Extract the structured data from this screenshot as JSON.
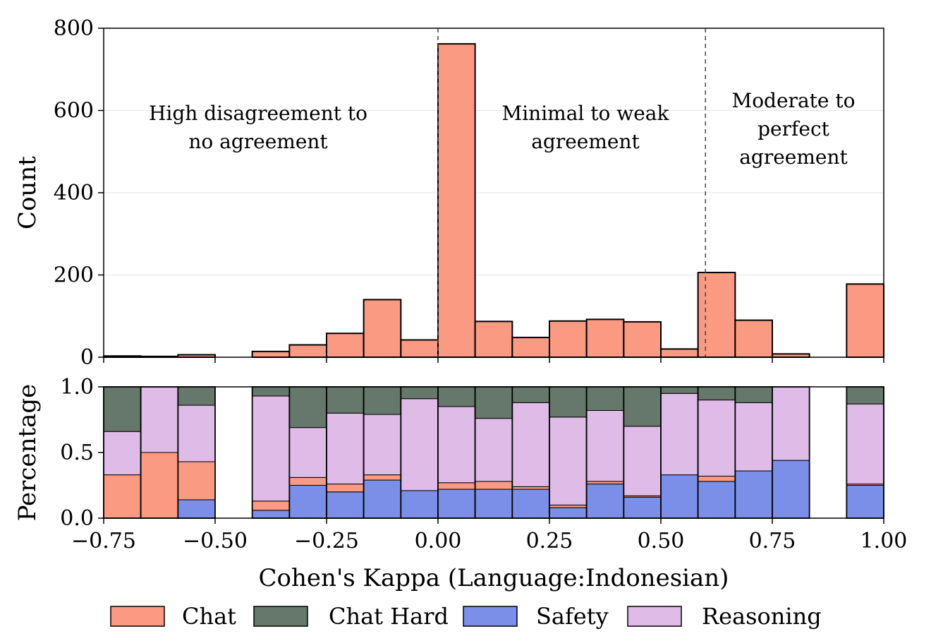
{
  "chart_data": [
    {
      "type": "bar",
      "panel": "count histogram",
      "ylabel": "Count",
      "ylim": [
        0,
        800
      ],
      "yticks": [
        "0",
        "200",
        "400",
        "600",
        "800"
      ],
      "grid": true,
      "bin_edges": [
        -0.75,
        -0.6667,
        -0.5833,
        -0.5,
        -0.4167,
        -0.3333,
        -0.25,
        -0.1667,
        -0.0833,
        0.0,
        0.0833,
        0.1667,
        0.25,
        0.3333,
        0.4167,
        0.5,
        0.5833,
        0.6667,
        0.75,
        0.8333,
        0.9167,
        1.0
      ],
      "values": [
        3,
        2,
        6,
        0,
        14,
        30,
        58,
        140,
        42,
        762,
        87,
        48,
        88,
        92,
        86,
        20,
        206,
        90,
        8,
        0,
        178
      ],
      "thresholds": [
        0.0,
        0.6
      ],
      "region_labels": [
        {
          "lines": [
            "High disagreement to",
            "no agreement"
          ]
        },
        {
          "lines": [
            "Minimal to weak",
            "agreement"
          ]
        },
        {
          "lines": [
            "Moderate to",
            "perfect",
            "agreement"
          ]
        }
      ]
    },
    {
      "type": "bar",
      "stacked": true,
      "panel": "percentage breakdown",
      "ylabel": "Percentage",
      "ylim": [
        0,
        1
      ],
      "yticks": [
        "0.0",
        "0.5",
        "1.0"
      ],
      "xlabel": "Cohen's Kappa (Language:Indonesian)",
      "xlim": [
        -0.75,
        1.0
      ],
      "xticks": [
        "−0.75",
        "−0.50",
        "−0.25",
        "0.00",
        "0.25",
        "0.50",
        "0.75",
        "1.00"
      ],
      "series": [
        {
          "name": "Safety",
          "color": "#7b8fe8",
          "values": [
            0,
            0,
            0.14,
            0,
            0.06,
            0.25,
            0.2,
            0.29,
            0.21,
            0.22,
            0.22,
            0.22,
            0.08,
            0.26,
            0.16,
            0.33,
            0.28,
            0.36,
            0.44,
            0,
            0.25
          ]
        },
        {
          "name": "Chat",
          "color": "#fa9a82",
          "values": [
            0.33,
            0.5,
            0.29,
            0,
            0.07,
            0.06,
            0.06,
            0.04,
            0,
            0.05,
            0.06,
            0.02,
            0.02,
            0.02,
            0.01,
            0,
            0.04,
            0,
            0,
            0,
            0.01
          ]
        },
        {
          "name": "Reasoning",
          "color": "#dfbbe7",
          "values": [
            0.33,
            0.5,
            0.43,
            0,
            0.8,
            0.38,
            0.54,
            0.46,
            0.7,
            0.58,
            0.48,
            0.64,
            0.67,
            0.54,
            0.53,
            0.62,
            0.58,
            0.52,
            0.56,
            0,
            0.61
          ]
        },
        {
          "name": "Chat Hard",
          "color": "#66786b",
          "values": [
            0.34,
            0,
            0.14,
            0,
            0.07,
            0.31,
            0.2,
            0.21,
            0.09,
            0.15,
            0.24,
            0.12,
            0.23,
            0.18,
            0.3,
            0.05,
            0.1,
            0.12,
            0,
            0,
            0.13
          ]
        }
      ]
    }
  ],
  "legend": {
    "placement": "bottom",
    "items": [
      {
        "label": "Chat",
        "color": "#fa9a82"
      },
      {
        "label": "Chat Hard",
        "color": "#66786b"
      },
      {
        "label": "Safety",
        "color": "#7b8fe8"
      },
      {
        "label": "Reasoning",
        "color": "#dfbbe7"
      }
    ]
  }
}
